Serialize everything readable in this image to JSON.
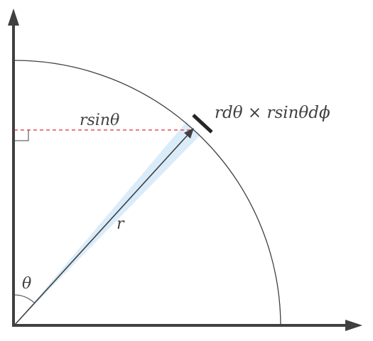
{
  "diagram": {
    "labels": {
      "area_element": "rdθ × rsinθdϕ",
      "radius_projection": "rsinθ",
      "radius": "r",
      "polar_angle": "θ"
    },
    "colors": {
      "axis": "#404040",
      "arc": "#404040",
      "radius_vector": "#404040",
      "projection_line": "#e8505b",
      "wedge_fill": "#d6eaf8",
      "area_element_bar": "#262626",
      "text": "#404040"
    }
  }
}
